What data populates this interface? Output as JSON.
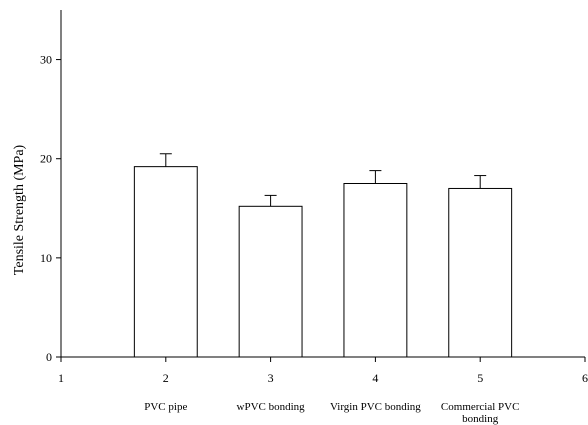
{
  "chart_data": {
    "type": "bar",
    "title": "",
    "xlabel": "",
    "ylabel": "Tensile Strength (MPa)",
    "x_ticks": [
      "1",
      "2",
      "3",
      "4",
      "5",
      "6"
    ],
    "xlim": [
      1,
      6
    ],
    "y_ticks": [
      "0",
      "10",
      "20",
      "30"
    ],
    "ylim": [
      0,
      35
    ],
    "grid": false,
    "legend": "none",
    "bars": [
      {
        "x": 2,
        "category_lines": [
          "PVC pipe"
        ],
        "value": 19.2,
        "error": 1.3
      },
      {
        "x": 3,
        "category_lines": [
          "wPVC bonding"
        ],
        "value": 15.2,
        "error": 1.1
      },
      {
        "x": 4,
        "category_lines": [
          "Virgin PVC bonding"
        ],
        "value": 17.5,
        "error": 1.3
      },
      {
        "x": 5,
        "category_lines": [
          "Commercial PVC",
          "bonding"
        ],
        "value": 17.0,
        "error": 1.3
      }
    ],
    "bar_width": 0.6,
    "colors": {
      "bar_fill": "#ffffff",
      "bar_stroke": "#000000",
      "axis": "#000000"
    }
  }
}
